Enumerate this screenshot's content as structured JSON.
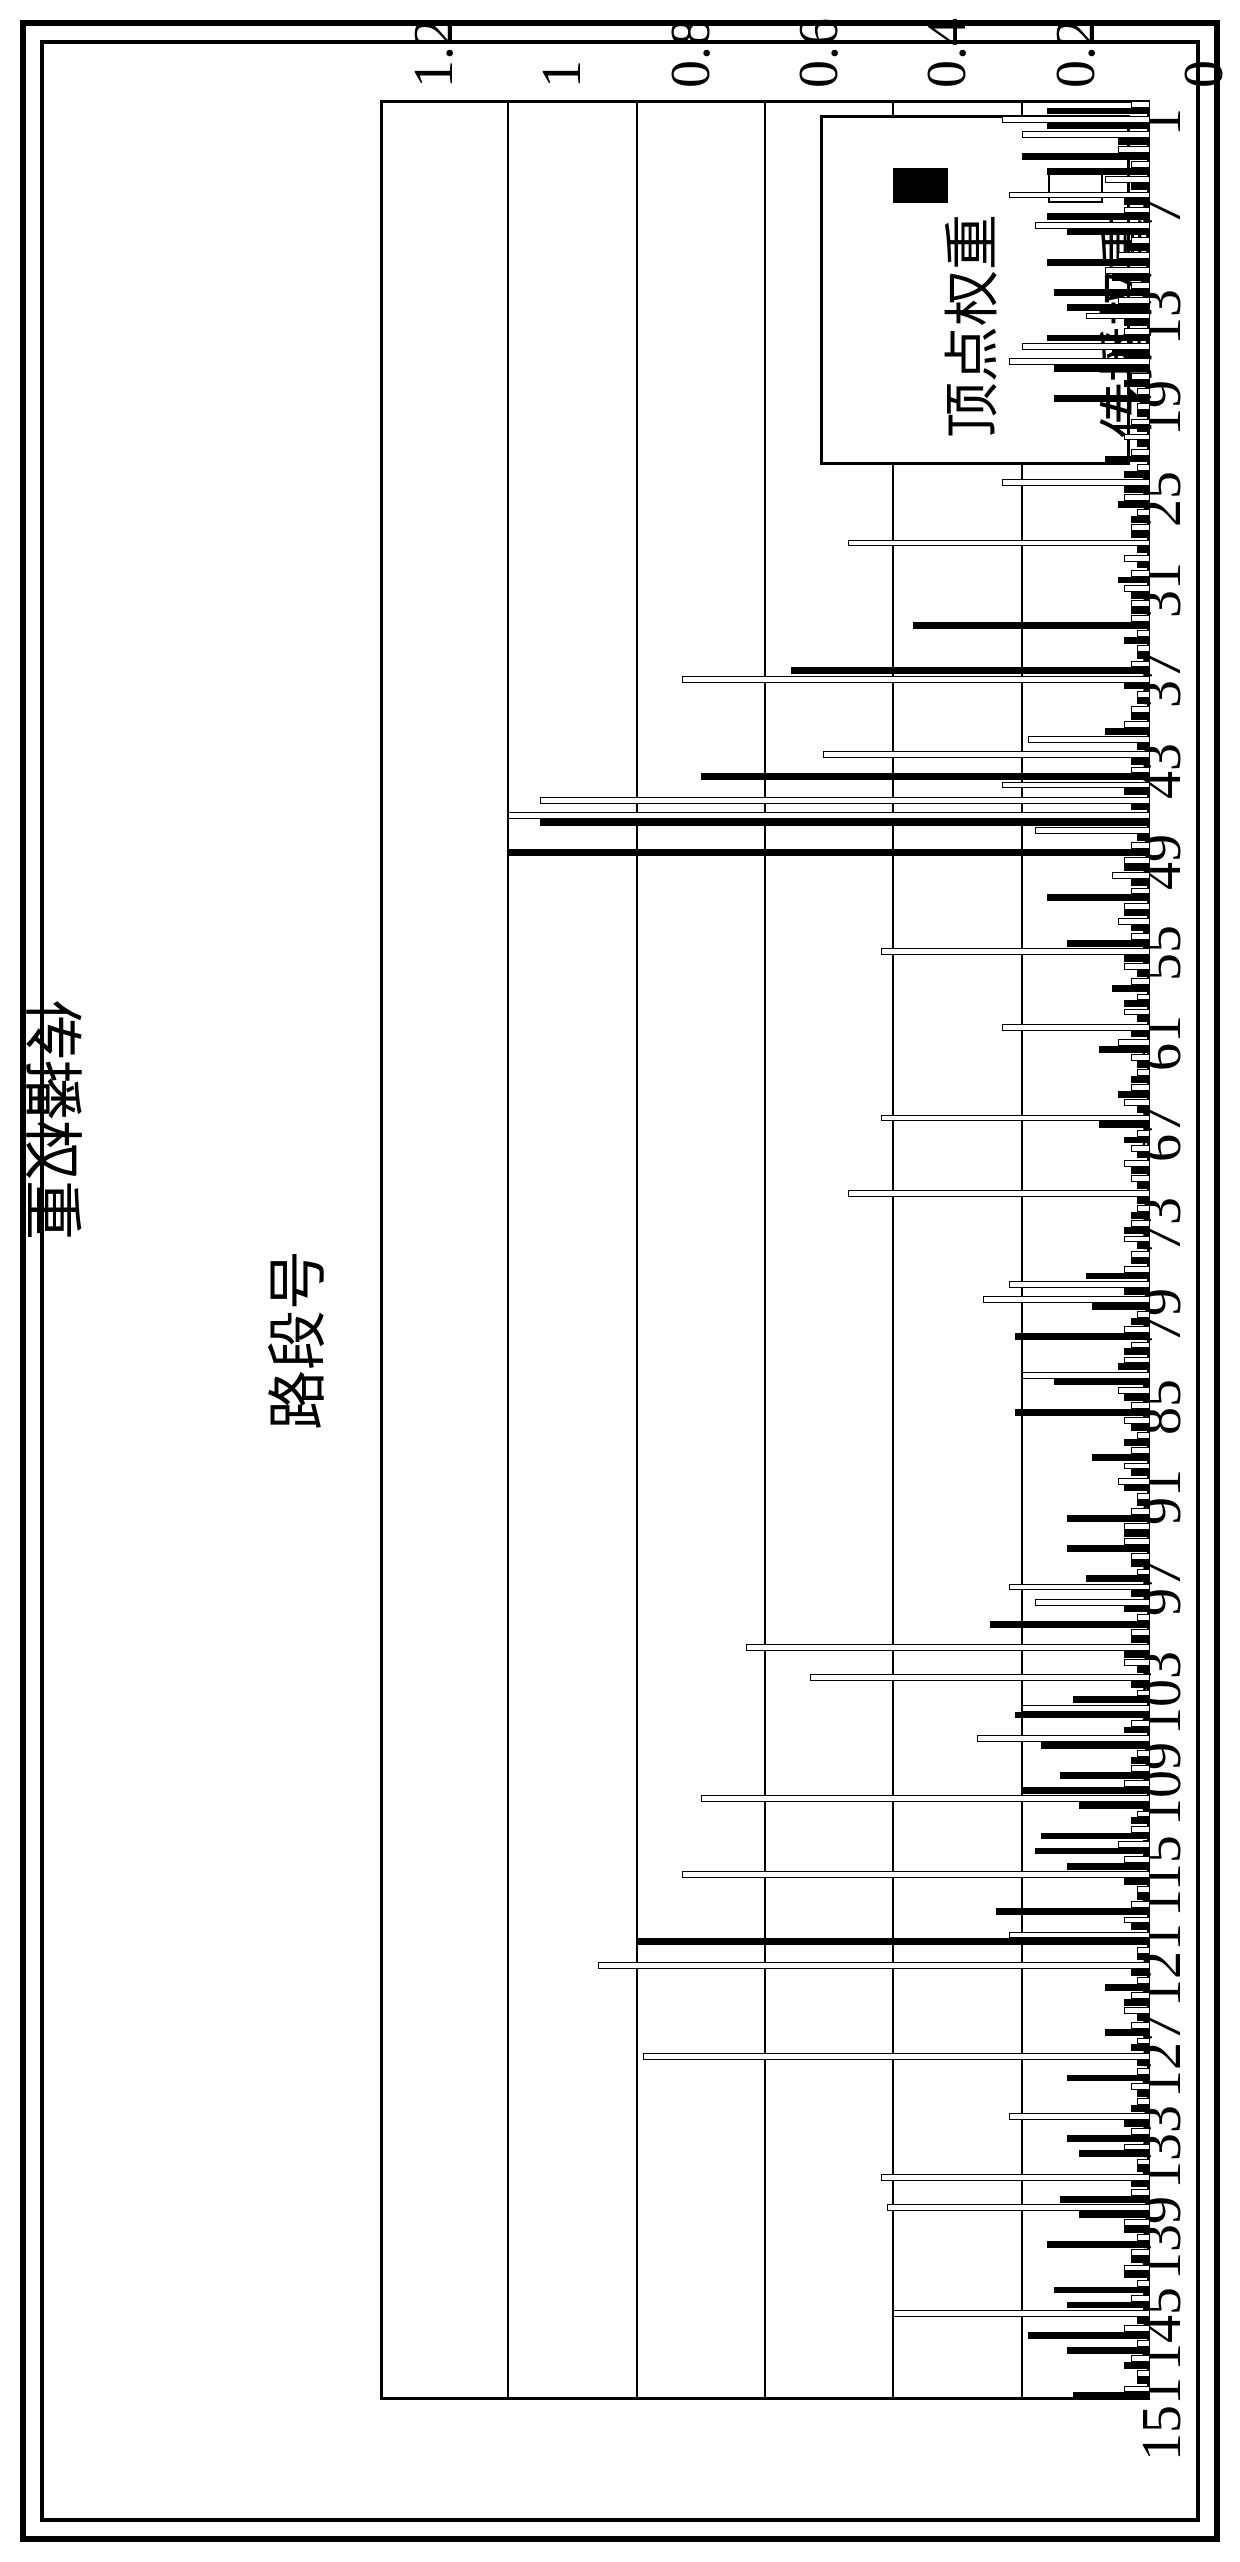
{
  "chart": {
    "type": "grouped-bar",
    "background_color": "#ffffff",
    "grid_color": "#000000",
    "border_color": "#000000",
    "series_colors": {
      "propagation": "#ffffff",
      "vertex": "#000000"
    },
    "bar_border_color": "#000000",
    "xlim": [
      1,
      152
    ],
    "ylim": [
      0,
      1.2
    ],
    "xtick_step": 6,
    "ytick_step": 0.2,
    "xticks": [
      1,
      7,
      13,
      19,
      25,
      31,
      37,
      43,
      49,
      55,
      61,
      67,
      73,
      79,
      85,
      91,
      97,
      103,
      109,
      115,
      121,
      127,
      133,
      139,
      145,
      151
    ],
    "yticks": [
      "0",
      "0.2",
      "0.4",
      "0.6",
      "0.8",
      "1",
      "1.2"
    ],
    "bar_width_units": 0.45,
    "axis_font_size": 56,
    "title_font_size": 60,
    "y_axis_title": "传播权重",
    "x_axis_title": "路段号",
    "legend": {
      "position": "top-right",
      "items": [
        {
          "key": "propagation",
          "label": "传播权重",
          "swatch": "open"
        },
        {
          "key": "vertex",
          "label": "顶点权重",
          "swatch": "solid"
        }
      ]
    },
    "categories_count": 152,
    "series": {
      "propagation": [
        0.03,
        0.23,
        0.2,
        0.05,
        0.03,
        0.07,
        0.22,
        0.04,
        0.18,
        0.03,
        0.05,
        0.07,
        0.03,
        0.05,
        0.1,
        0.04,
        0.2,
        0.22,
        0.03,
        0.02,
        0.02,
        0.03,
        0.04,
        0.03,
        0.02,
        0.23,
        0.04,
        0.02,
        0.03,
        0.47,
        0.04,
        0.03,
        0.04,
        0.03,
        0.03,
        0.02,
        0.02,
        0.03,
        0.73,
        0.02,
        0.03,
        0.04,
        0.19,
        0.51,
        0.03,
        0.23,
        0.95,
        1.0,
        0.18,
        0.03,
        0.04,
        0.06,
        0.03,
        0.04,
        0.05,
        0.03,
        0.42,
        0.04,
        0.03,
        0.02,
        0.04,
        0.23,
        0.05,
        0.03,
        0.02,
        0.03,
        0.04,
        0.42,
        0.02,
        0.03,
        0.04,
        0.03,
        0.47,
        0.02,
        0.03,
        0.04,
        0.03,
        0.04,
        0.22,
        0.26,
        0.02,
        0.04,
        0.03,
        0.04,
        0.2,
        0.05,
        0.03,
        0.04,
        0.02,
        0.03,
        0.04,
        0.05,
        0.02,
        0.03,
        0.04,
        0.04,
        0.03,
        0.02,
        0.22,
        0.18,
        0.02,
        0.03,
        0.63,
        0.04,
        0.53,
        0.02,
        0.2,
        0.03,
        0.27,
        0.02,
        0.03,
        0.04,
        0.7,
        0.02,
        0.03,
        0.05,
        0.04,
        0.73,
        0.02,
        0.03,
        0.04,
        0.22,
        0.02,
        0.86,
        0.02,
        0.03,
        0.04,
        0.03,
        0.02,
        0.79,
        0.02,
        0.03,
        0.02,
        0.22,
        0.03,
        0.04,
        0.02,
        0.42,
        0.03,
        0.41,
        0.04,
        0.02,
        0.03,
        0.04,
        0.02,
        0.03,
        0.4,
        0.04,
        0.02,
        0.03,
        0.02,
        0.04
      ],
      "vertex": [
        0.16,
        0.16,
        0.05,
        0.2,
        0.16,
        0.03,
        0.04,
        0.16,
        0.13,
        0.04,
        0.16,
        0.06,
        0.15,
        0.13,
        0.04,
        0.16,
        0.06,
        0.15,
        0.04,
        0.15,
        0.02,
        0.02,
        0.02,
        0.07,
        0.04,
        0.04,
        0.05,
        0.03,
        0.03,
        0.02,
        0.02,
        0.05,
        0.03,
        0.03,
        0.37,
        0.04,
        0.02,
        0.56,
        0.04,
        0.02,
        0.03,
        0.07,
        0.02,
        0.03,
        0.7,
        0.04,
        0.03,
        0.95,
        0.02,
        1.0,
        0.04,
        0.03,
        0.16,
        0.04,
        0.03,
        0.13,
        0.04,
        0.02,
        0.06,
        0.04,
        0.02,
        0.03,
        0.08,
        0.02,
        0.03,
        0.05,
        0.02,
        0.08,
        0.04,
        0.02,
        0.03,
        0.02,
        0.02,
        0.03,
        0.04,
        0.02,
        0.03,
        0.1,
        0.04,
        0.09,
        0.03,
        0.21,
        0.04,
        0.05,
        0.15,
        0.04,
        0.21,
        0.03,
        0.04,
        0.09,
        0.03,
        0.04,
        0.02,
        0.13,
        0.04,
        0.13,
        0.03,
        0.1,
        0.03,
        0.04,
        0.25,
        0.03,
        0.04,
        0.02,
        0.03,
        0.12,
        0.21,
        0.04,
        0.17,
        0.03,
        0.14,
        0.2,
        0.11,
        0.03,
        0.17,
        0.18,
        0.13,
        0.04,
        0.02,
        0.24,
        0.03,
        0.8,
        0.02,
        0.03,
        0.07,
        0.04,
        0.02,
        0.07,
        0.03,
        0.02,
        0.13,
        0.02,
        0.03,
        0.04,
        0.13,
        0.11,
        0.02,
        0.03,
        0.14,
        0.11,
        0.04,
        0.16,
        0.03,
        0.04,
        0.15,
        0.13,
        0.02,
        0.19,
        0.13,
        0.04,
        0.02,
        0.12
      ]
    }
  }
}
